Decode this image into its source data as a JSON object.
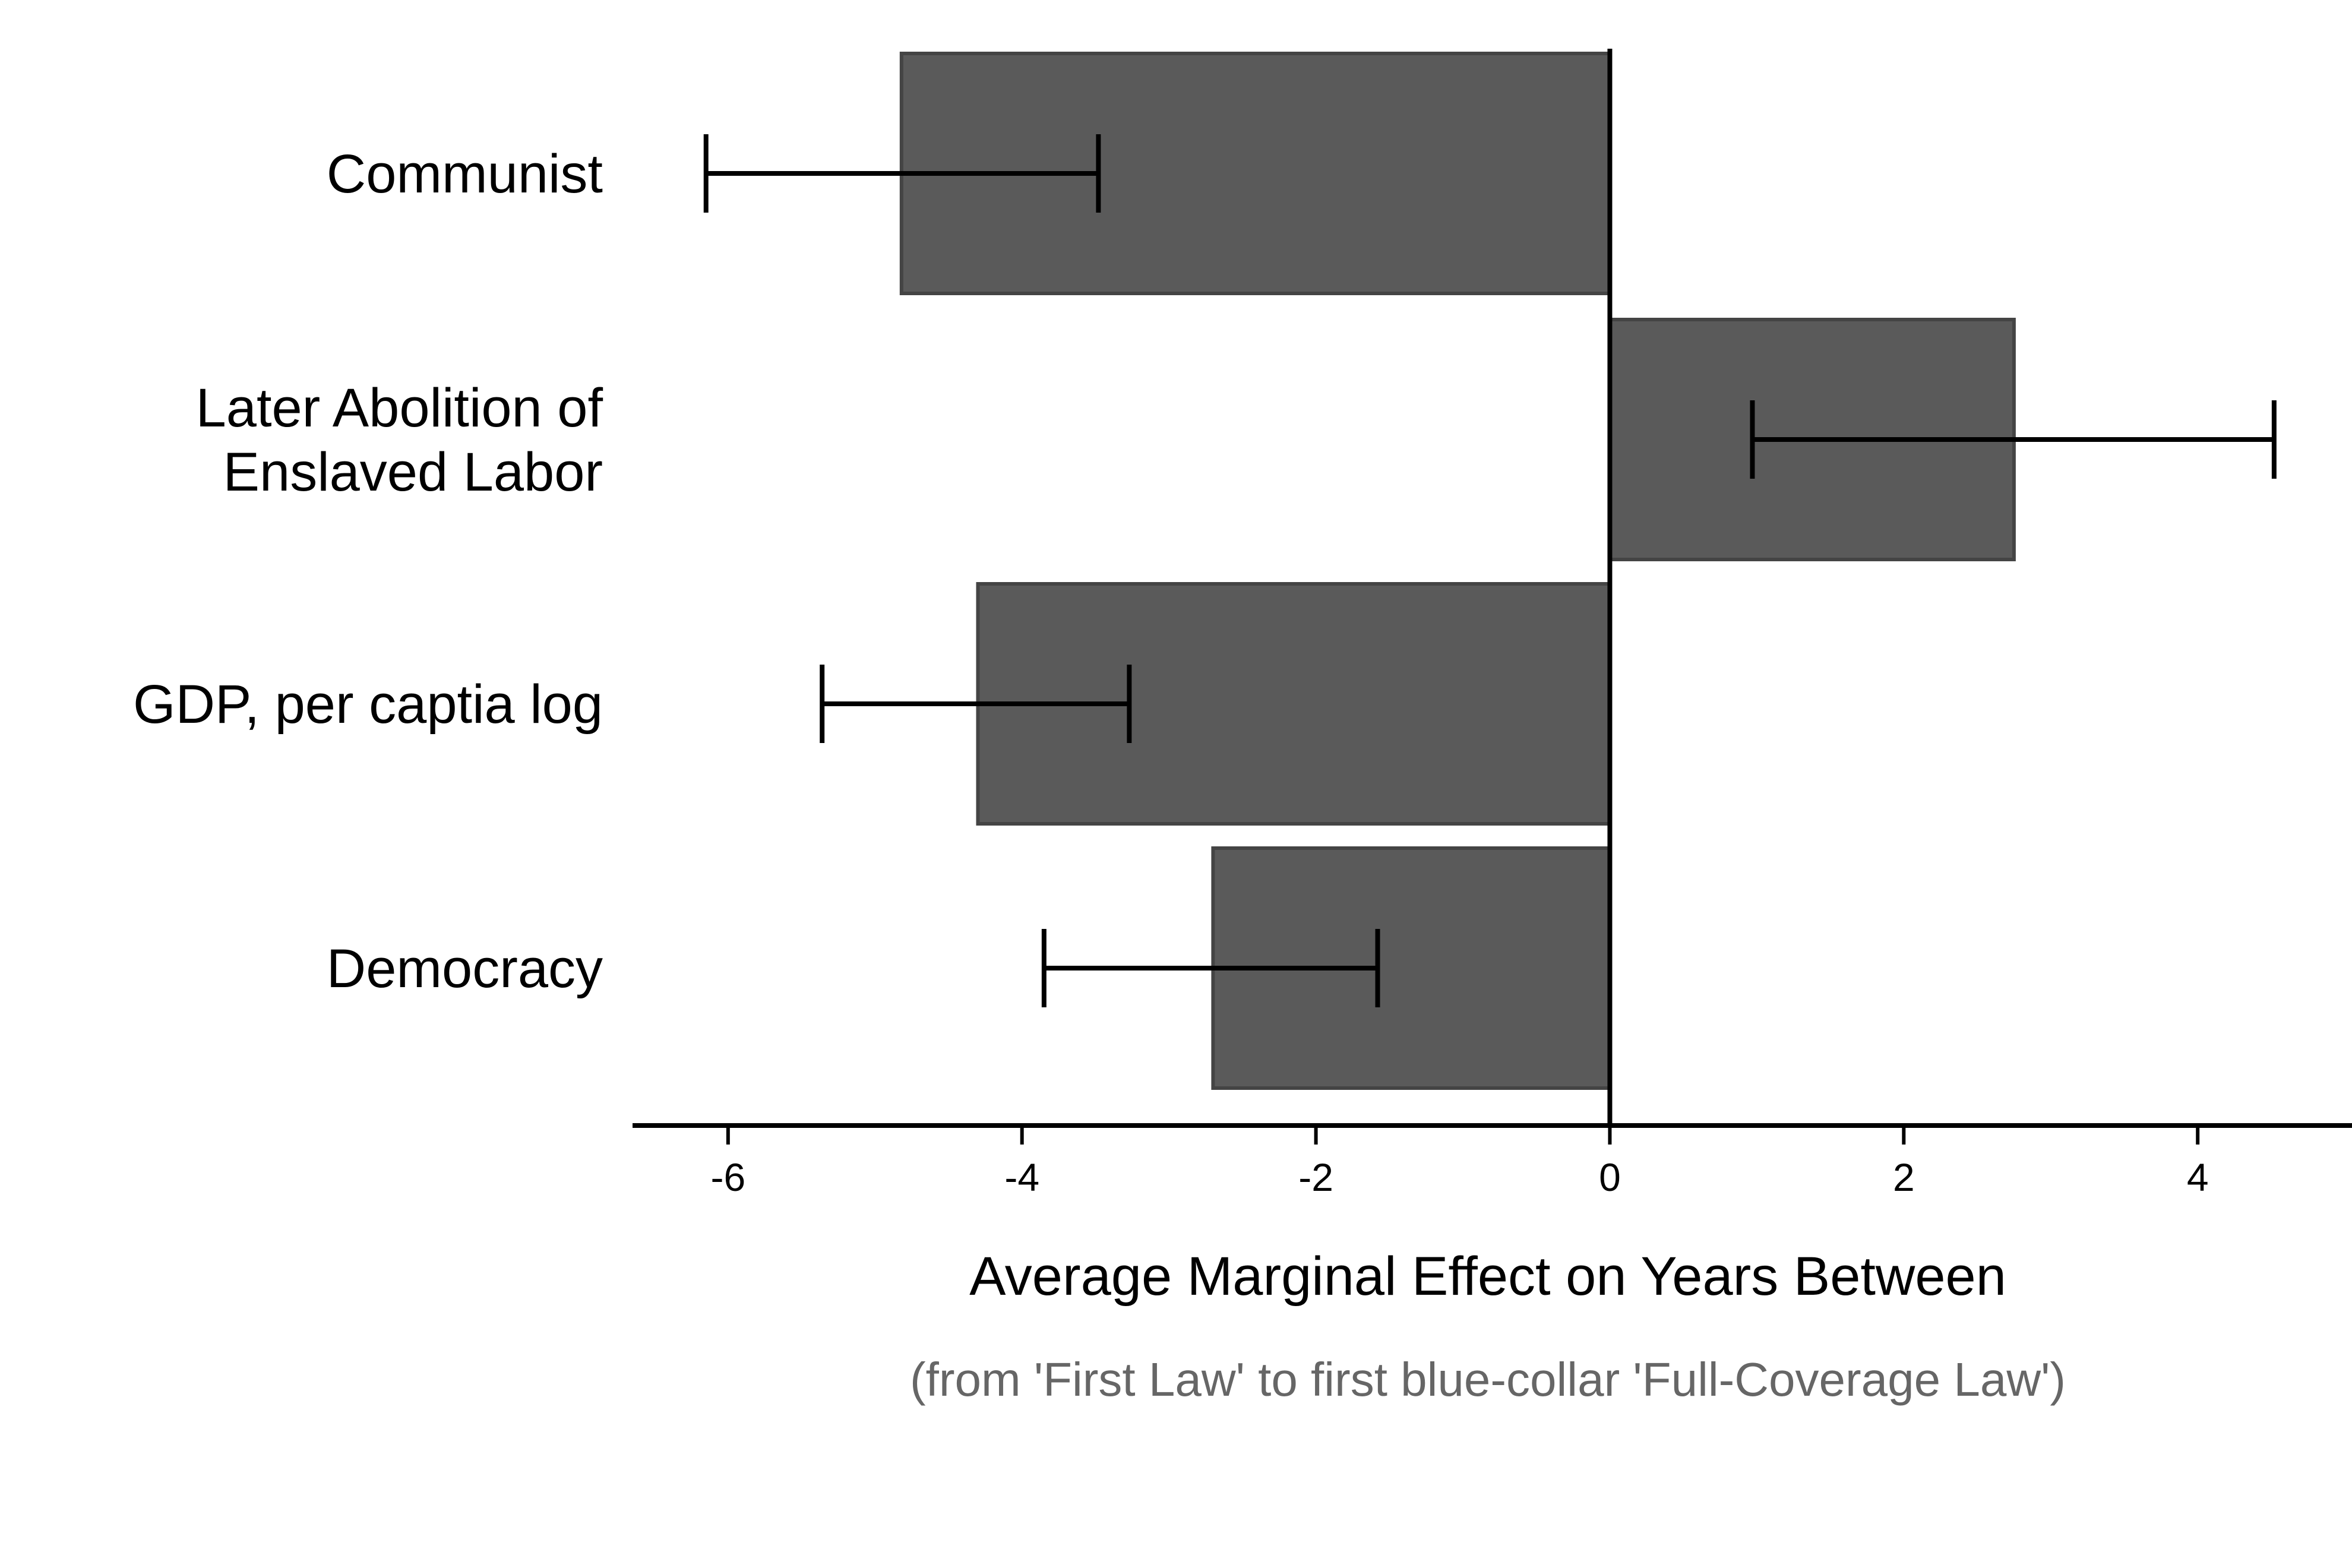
{
  "chart_data": {
    "type": "bar",
    "orientation": "horizontal",
    "categories": [
      [
        "Communist"
      ],
      [
        "Later Abolition of",
        "Enslaved Labor"
      ],
      [
        "GDP, per captia log"
      ],
      [
        "Democracy"
      ]
    ],
    "values": [
      -4.82,
      2.75,
      -4.3,
      -2.7
    ],
    "ci_low": [
      -6.15,
      0.97,
      -5.36,
      -3.85
    ],
    "ci_high": [
      -3.48,
      4.52,
      -3.27,
      -1.58
    ],
    "xticks": [
      -6,
      -4,
      -2,
      0,
      2,
      4
    ],
    "xtick_labels": [
      "-6",
      "-4",
      "-2",
      "0",
      "2",
      "4"
    ],
    "xlim": [
      -6.65,
      5.05
    ],
    "xlabel": "Average Marginal Effect on Years Between",
    "subtitle": "(from 'First Law' to first blue-collar 'Full-Coverage Law')",
    "grid": false,
    "legend": "none",
    "bar_color": "#5a5a5a",
    "bar_edge_color": "#444444",
    "axis_color": "#000000",
    "subtitle_color": "#666666"
  }
}
